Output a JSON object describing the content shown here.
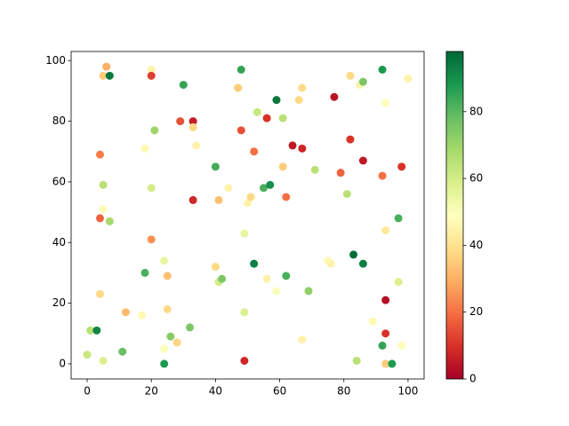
{
  "chart_data": {
    "type": "scatter",
    "x": [
      0,
      1,
      3,
      4,
      5,
      4,
      4,
      5,
      5,
      7,
      5,
      6,
      7,
      11,
      12,
      17,
      18,
      18,
      20,
      20,
      20,
      20,
      21,
      24,
      24,
      24,
      25,
      25,
      26,
      28,
      29,
      30,
      32,
      33,
      33,
      34,
      33,
      40,
      40,
      41,
      41,
      42,
      44,
      47,
      48,
      48,
      49,
      49,
      49,
      50,
      51,
      52,
      52,
      53,
      55,
      56,
      56,
      57,
      59,
      59,
      61,
      61,
      62,
      62,
      64,
      66,
      67,
      67,
      67,
      69,
      71,
      75,
      76,
      77,
      79,
      81,
      82,
      82,
      83,
      84,
      85,
      86,
      86,
      86,
      89,
      92,
      92,
      92,
      93,
      93,
      93,
      93,
      93,
      95,
      97,
      97,
      98,
      98,
      100
    ],
    "values": [
      3,
      11,
      11,
      23,
      1,
      48,
      69,
      59,
      51,
      47,
      95,
      98,
      95,
      4,
      17,
      16,
      30,
      71,
      97,
      95,
      58,
      41,
      77,
      0,
      5,
      34,
      29,
      18,
      9,
      7,
      80,
      92,
      12,
      80,
      78,
      72,
      54,
      65,
      32,
      54,
      27,
      28,
      58,
      91,
      97,
      77,
      1,
      43,
      17,
      53,
      55,
      33,
      70,
      83,
      58,
      81,
      28,
      59,
      87,
      24,
      81,
      65,
      29,
      55,
      72,
      87,
      91,
      71,
      8,
      24,
      64,
      34,
      33,
      88,
      63,
      56,
      95,
      74,
      36,
      1,
      92,
      93,
      67,
      33,
      14,
      97,
      62,
      6,
      86,
      44,
      21,
      10,
      0,
      0,
      48,
      27,
      65,
      6,
      94
    ],
    "color_values": [
      62,
      65,
      92,
      38,
      58,
      18,
      22,
      65,
      48,
      68,
      35,
      30,
      95,
      78,
      32,
      47,
      82,
      47,
      45,
      12,
      60,
      25,
      70,
      88,
      50,
      55,
      33,
      38,
      73,
      37,
      15,
      85,
      75,
      6,
      38,
      45,
      8,
      83,
      38,
      33,
      60,
      75,
      45,
      35,
      85,
      15,
      8,
      55,
      58,
      45,
      38,
      93,
      20,
      62,
      82,
      10,
      45,
      90,
      95,
      50,
      65,
      35,
      82,
      20,
      5,
      38,
      38,
      8,
      45,
      72,
      65,
      47,
      45,
      4,
      18,
      65,
      38,
      10,
      97,
      65,
      45,
      75,
      5,
      93,
      47,
      88,
      20,
      85,
      50,
      42,
      3,
      10,
      35,
      88,
      82,
      58,
      10,
      48,
      45
    ],
    "colormap": "RdYlGn",
    "xlim": [
      -5,
      105
    ],
    "ylim": [
      -5,
      103
    ],
    "xticks": [
      0,
      20,
      40,
      60,
      80,
      100
    ],
    "yticks": [
      0,
      20,
      40,
      60,
      80,
      100
    ],
    "clim": [
      0,
      98
    ],
    "cticks": [
      0,
      20,
      40,
      60,
      80
    ]
  }
}
